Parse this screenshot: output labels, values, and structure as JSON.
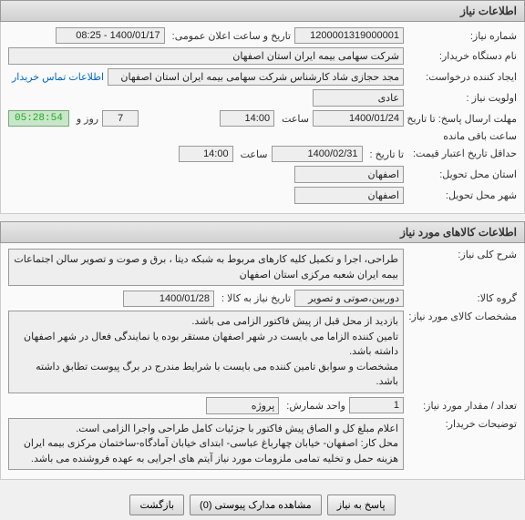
{
  "panel1": {
    "title": "اطلاعات نیاز",
    "needNo": {
      "label": "شماره نیاز:",
      "value": "1200001319000001"
    },
    "announceDate": {
      "label": "تاریخ و ساعت اعلان عمومی:",
      "value": "1400/01/17 - 08:25"
    },
    "buyerOrg": {
      "label": "نام دستگاه خریدار:",
      "value": "شرکت سهامی بیمه ایران استان اصفهان"
    },
    "requester": {
      "label": "ایجاد کننده درخواست:",
      "value": "مجد حجازی شاد کارشناس شرکت سهامی بیمه ایران استان اصفهان"
    },
    "contact": {
      "label": "اطلاعات تماس خریدار",
      "value": ""
    },
    "priority": {
      "label": "اولویت نیاز :",
      "value": "عادی"
    },
    "replyDeadline": {
      "label": "مهلت ارسال پاسخ:   تا تاریخ :",
      "date": "1400/01/24",
      "timeLabel": "ساعت",
      "time": "14:00"
    },
    "daysLeft": {
      "value": "7",
      "label": "روز و"
    },
    "timer": "05:28:54",
    "timerSuffix": "ساعت باقی مانده",
    "validityMin": {
      "label": "حداقل تاریخ اعتبار قیمت:",
      "sub": "تا تاریخ :",
      "date": "1400/02/31",
      "timeLabel": "ساعت",
      "time": "14:00"
    },
    "deliveryProvince": {
      "label": "استان محل تحویل:",
      "value": "اصفهان"
    },
    "deliveryCity": {
      "label": "شهر محل تحویل:",
      "value": "اصفهان"
    }
  },
  "panel2": {
    "title": "اطلاعات کالاهای مورد نیاز",
    "generalDesc": {
      "label": "شرح کلی نیاز:",
      "value": "طراحی، اجرا و تکمیل کلیه کارهای مربوط به شبکه دیتا ، برق و صوت و تصویر سالن اجتماعات بیمه ایران شعبه مرکزی استان اصفهان"
    },
    "goodsGroup": {
      "label": "گروه کالا:",
      "value": "دوربین،صوتی و تصویر"
    },
    "needByDate": {
      "label": "تاریخ نیاز به کالا :",
      "value": "1400/01/28"
    },
    "goodsSpec": {
      "label": "مشخصات کالای مورد نیاز:",
      "value": "بازدید از محل قبل از پیش فاکتور الزامی می باشد.\nتامین کننده الزاما می بایست در شهر اصفهان مستقر بوده یا نمایندگی فعال در شهر اصفهان داشته باشد.\nمشخصات و سوابق تامین کننده می بایست با شرایط مندرج در برگ پیوست تطابق داشته باشد."
    },
    "qty": {
      "label": "تعداد / مقدار مورد نیاز:",
      "value": "1"
    },
    "unit": {
      "label": "واحد شمارش:",
      "value": "پروژه"
    },
    "buyerNotes": {
      "label": "توضیحات خریدار:",
      "value": "اعلام مبلغ کل و الصاق پیش فاکتور با جزئیات کامل طراحی واجرا الزامی است.\nمحل کار: اصفهان- خیابان چهارباغ عباسی- ابتدای خیابان آمادگاه-ساختمان مرکزی بیمه ایران\nهزینه حمل و تخلیه تمامی ملزومات مورد نیاز آیتم های اجرایی به عهده فروشنده می باشد."
    }
  },
  "buttons": {
    "reply": "پاسخ به نیاز",
    "attachments": "مشاهده مدارک پیوستی (0)",
    "back": "بازگشت"
  }
}
